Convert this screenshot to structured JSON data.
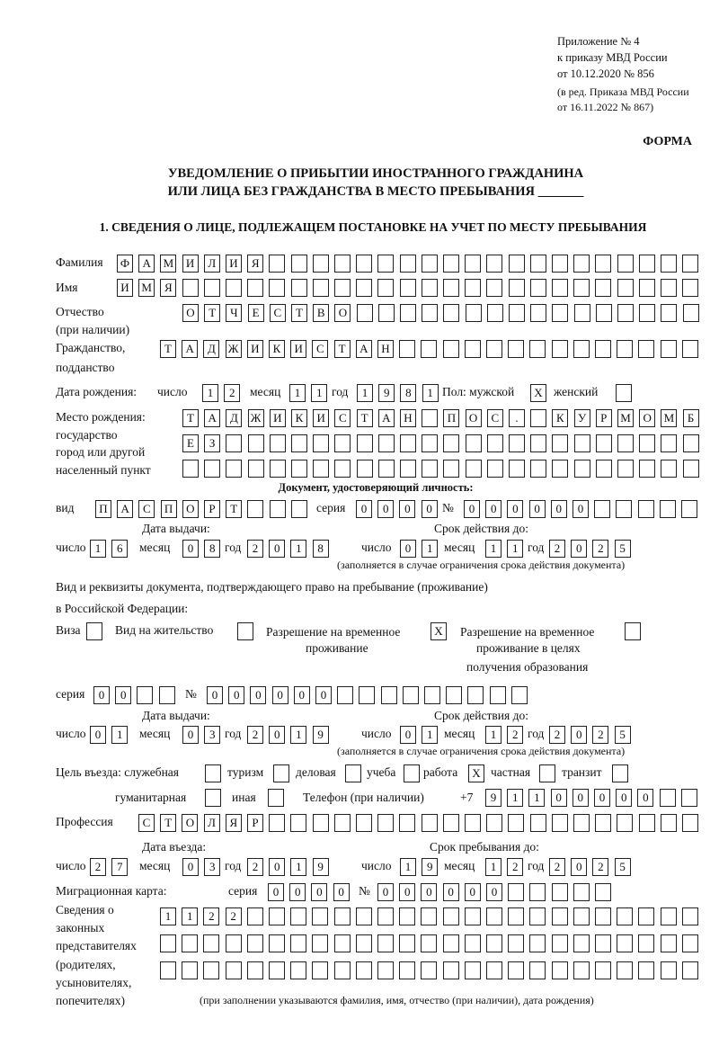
{
  "header": {
    "appendix": "Приложение № 4",
    "order": "к приказу МВД России",
    "order_date": "от 10.12.2020 № 856",
    "revision1": "(в ред. Приказа МВД России",
    "revision2": "от 16.11.2022 № 867)",
    "form_label": "ФОРМА",
    "title1": "УВЕДОМЛЕНИЕ О ПРИБЫТИИ ИНОСТРАННОГО ГРАЖДАНИНА",
    "title2": "ИЛИ ЛИЦА БЕЗ ГРАЖДАНСТВА В МЕСТО ПРЕБЫВАНИЯ _______",
    "section1": "1. СВЕДЕНИЯ О ЛИЦЕ, ПОДЛЕЖАЩЕМ ПОСТАНОВКЕ НА УЧЕТ ПО МЕСТУ ПРЕБЫВАНИЯ"
  },
  "labels": {
    "surname": "Фамилия",
    "name": "Имя",
    "patronymic": "Отчество",
    "patronymic2": "(при наличии)",
    "citizenship": "Гражданство,",
    "citizenship2": "подданство",
    "birth_date": "Дата рождения:",
    "day": "число",
    "month": "месяц",
    "year": "год",
    "sex": "Пол: мужской",
    "female": "женский",
    "birthplace1": "Место рождения:",
    "birthplace2": "государство",
    "birthplace3": "город или другой",
    "birthplace4": "населенный пункт",
    "id_doc": "Документ, удостоверяющий личность:",
    "kind": "вид",
    "series": "серия",
    "number": "№",
    "issue_date": "Дата выдачи:",
    "valid_until": "Срок действия до:",
    "validity_note": "(заполняется в случае ограничения срока действия документа)",
    "right_doc1": "Вид и реквизиты документа, подтверждающего право на пребывание (проживание)",
    "right_doc2": "в Российской Федерации:",
    "visa": "Виза",
    "residence": "Вид на жительство",
    "temp_res1": "Разрешение на временное",
    "temp_res2": "проживание",
    "temp_edu1": "Разрешение на временное",
    "temp_edu2": "проживание в целях",
    "temp_edu3": "получения образования",
    "purpose": "Цель въезда: служебная",
    "tourism": "туризм",
    "business": "деловая",
    "study": "учеба",
    "work": "работа",
    "private": "частная",
    "transit": "транзит",
    "humanitarian": "гуманитарная",
    "other": "иная",
    "phone": "Телефон (при наличии)",
    "phone_prefix": "+7",
    "profession": "Профессия",
    "entry_date": "Дата въезда:",
    "stay_until": "Срок пребывания до:",
    "migration_card": "Миграционная карта:",
    "reps1": "Сведения о",
    "reps2": "законных",
    "reps3": "представителях",
    "reps4": "(родителях,",
    "reps5": "усыновителях,",
    "reps6": "попечителях)",
    "reps_note": "(при заполнении указываются фамилия, имя, отчество (при наличии), дата рождения)"
  },
  "fields": {
    "surname": [
      "Ф",
      "А",
      "М",
      "И",
      "Л",
      "И",
      "Я"
    ],
    "name": [
      "И",
      "М",
      "Я"
    ],
    "patronymic": [
      "О",
      "Т",
      "Ч",
      "Е",
      "С",
      "Т",
      "В",
      "О"
    ],
    "citizenship": [
      "Т",
      "А",
      "Д",
      "Ж",
      "И",
      "К",
      "И",
      "С",
      "Т",
      "А",
      "Н"
    ],
    "birth_day": [
      "1",
      "2"
    ],
    "birth_month": [
      "1",
      "1"
    ],
    "birth_year": [
      "1",
      "9",
      "8",
      "1"
    ],
    "sex_male": "X",
    "sex_female": "",
    "birthplace1": [
      "Т",
      "А",
      "Д",
      "Ж",
      "И",
      "К",
      "И",
      "С",
      "Т",
      "А",
      "Н",
      "",
      "П",
      "О",
      "С",
      ".",
      "",
      "К",
      "У",
      "Р",
      "М",
      "О",
      "М",
      "Б"
    ],
    "birthplace2": [
      "Е",
      "З"
    ],
    "birthplace3": [],
    "id_kind": [
      "П",
      "А",
      "С",
      "П",
      "О",
      "Р",
      "Т"
    ],
    "id_series": [
      "0",
      "0",
      "0",
      "0"
    ],
    "id_number": [
      "0",
      "0",
      "0",
      "0",
      "0",
      "0"
    ],
    "id_issue_day": [
      "1",
      "6"
    ],
    "id_issue_month": [
      "0",
      "8"
    ],
    "id_issue_year": [
      "2",
      "0",
      "1",
      "8"
    ],
    "id_valid_day": [
      "0",
      "1"
    ],
    "id_valid_month": [
      "1",
      "1"
    ],
    "id_valid_year": [
      "2",
      "0",
      "2",
      "5"
    ],
    "visa": "",
    "residence": "",
    "temp_res": "X",
    "temp_edu": "",
    "rd_series": [
      "0",
      "0"
    ],
    "rd_number": [
      "0",
      "0",
      "0",
      "0",
      "0",
      "0"
    ],
    "rd_issue_day": [
      "0",
      "1"
    ],
    "rd_issue_month": [
      "0",
      "3"
    ],
    "rd_issue_year": [
      "2",
      "0",
      "1",
      "9"
    ],
    "rd_valid_day": [
      "0",
      "1"
    ],
    "rd_valid_month": [
      "1",
      "2"
    ],
    "rd_valid_year": [
      "2",
      "0",
      "2",
      "5"
    ],
    "purpose_official": "",
    "purpose_tourism": "",
    "purpose_business": "",
    "purpose_study": "",
    "purpose_work": "X",
    "purpose_private": "",
    "purpose_transit": "",
    "purpose_humanitarian": "",
    "purpose_other": "",
    "phone": [
      "9",
      "1",
      "1",
      "0",
      "0",
      "0",
      "0",
      "0"
    ],
    "profession": [
      "С",
      "Т",
      "О",
      "Л",
      "Я",
      "Р"
    ],
    "entry_day": [
      "2",
      "7"
    ],
    "entry_month": [
      "0",
      "3"
    ],
    "entry_year": [
      "2",
      "0",
      "1",
      "9"
    ],
    "stay_day": [
      "1",
      "9"
    ],
    "stay_month": [
      "1",
      "2"
    ],
    "stay_year": [
      "2",
      "0",
      "2",
      "5"
    ],
    "mc_series": [
      "0",
      "0",
      "0",
      "0"
    ],
    "mc_number": [
      "0",
      "0",
      "0",
      "0",
      "0",
      "0"
    ],
    "reps1": [
      "1",
      "1",
      "2",
      "2"
    ],
    "reps2": [],
    "reps3": []
  }
}
